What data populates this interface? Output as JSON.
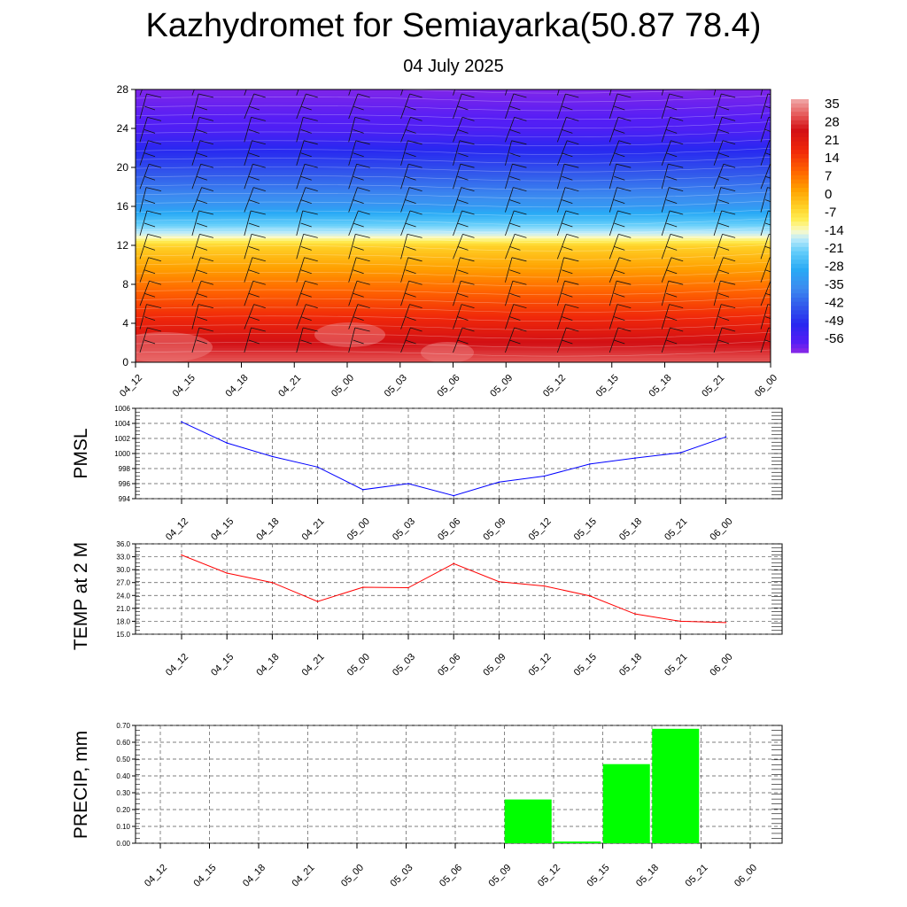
{
  "title": "Kazhydromet for Semiayarka(50.87 78.4)",
  "subtitle": "04 July 2025",
  "colors": {
    "pmsl_line": "#0000ff",
    "temp_line": "#ff0000",
    "precip_bar": "#00ff00"
  },
  "chart_data": [
    {
      "type": "heatmap",
      "title": "",
      "x_ticks": [
        "04_12",
        "04_15",
        "04_18",
        "04_21",
        "05_00",
        "05_03",
        "05_06",
        "05_09",
        "05_12",
        "05_15",
        "05_18",
        "05_21",
        "06_00"
      ],
      "y_ticks": [
        "0",
        "4",
        "8",
        "12",
        "16",
        "20",
        "24",
        "28"
      ],
      "ylim": [
        0,
        28
      ],
      "colorbar_ticks": [
        "35",
        "28",
        "21",
        "14",
        "7",
        "0",
        "-7",
        "-14",
        "-21",
        "-28",
        "-35",
        "-42",
        "-49",
        "-56"
      ],
      "colorbar_range": [
        -60,
        38
      ],
      "temperature_profile": {
        "levels": [
          0,
          4,
          8,
          12,
          13,
          16,
          20,
          24,
          28
        ],
        "values": [
          32,
          20,
          8,
          -4,
          -14,
          -32,
          -44,
          -55,
          -59
        ]
      },
      "overlay": "wind barbs"
    },
    {
      "type": "line",
      "ylabel": "PMSL",
      "x": [
        "04_12",
        "04_15",
        "04_18",
        "04_21",
        "05_00",
        "05_03",
        "05_06",
        "05_09",
        "05_12",
        "05_15",
        "05_18",
        "05_21",
        "06_00"
      ],
      "y_ticks": [
        "1006",
        "1004",
        "1002",
        "1000",
        "998",
        "996",
        "994"
      ],
      "ylim": [
        994,
        1006
      ],
      "values": [
        1004.2,
        1001.4,
        999.6,
        998.2,
        995.2,
        996.0,
        994.4,
        996.2,
        997.0,
        998.6,
        999.4,
        1000.1,
        1002.2
      ],
      "grid": true
    },
    {
      "type": "line",
      "ylabel": "TEMP at 2 M",
      "x": [
        "04_12",
        "04_15",
        "04_18",
        "04_21",
        "05_00",
        "05_03",
        "05_06",
        "05_09",
        "05_12",
        "05_15",
        "05_18",
        "05_21",
        "06_00"
      ],
      "y_ticks": [
        "36.0",
        "33.0",
        "30.0",
        "27.0",
        "24.0",
        "21.0",
        "18.0",
        "15.0"
      ],
      "ylim": [
        15,
        36
      ],
      "values": [
        33.4,
        29.2,
        27.0,
        22.6,
        25.9,
        25.8,
        31.4,
        27.2,
        26.2,
        23.9,
        19.7,
        18.0,
        17.7
      ],
      "grid": true
    },
    {
      "type": "bar",
      "ylabel": "PRECIP, mm",
      "categories": [
        "04_12",
        "04_15",
        "04_18",
        "04_21",
        "05_00",
        "05_03",
        "05_06",
        "05_09",
        "05_12",
        "05_15",
        "05_18",
        "05_21",
        "06_00"
      ],
      "y_ticks": [
        "0.70",
        "0.60",
        "0.50",
        "0.40",
        "0.30",
        "0.20",
        "0.10",
        "0.00"
      ],
      "ylim": [
        0,
        0.7
      ],
      "values": [
        0,
        0,
        0,
        0,
        0,
        0,
        0,
        0.26,
        0.01,
        0.47,
        0.68,
        0,
        0
      ],
      "grid": true
    }
  ]
}
